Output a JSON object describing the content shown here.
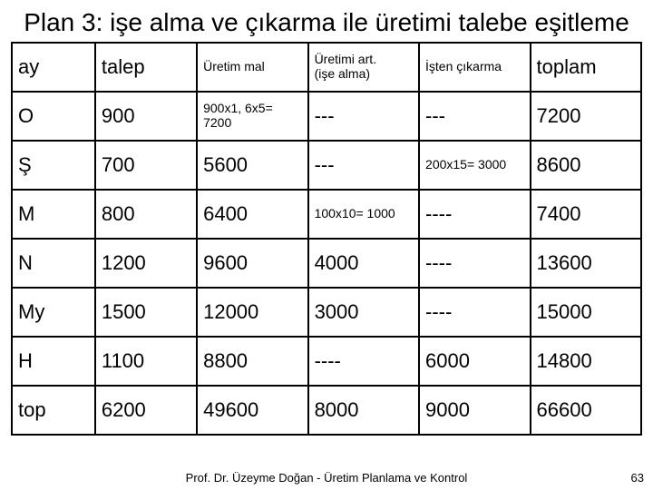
{
  "title": "Plan 3: işe alma ve çıkarma ile üretimi talebe eşitleme",
  "header": {
    "c0": "ay",
    "c1": "talep",
    "c2": "Üretim mal",
    "c3_line1": "Üretimi art.",
    "c3_line2": "(işe alma)",
    "c4": "İşten çıkarma",
    "c5": "toplam"
  },
  "rows": [
    {
      "c0": "O",
      "c1": "900",
      "c2": "900x1, 6x5= 7200",
      "c2_small": true,
      "c3": "---",
      "c4": "---",
      "c5": "7200"
    },
    {
      "c0": "Ş",
      "c1": "700",
      "c2": "5600",
      "c3": "---",
      "c4": "200x15= 3000",
      "c4_small": true,
      "c5": "8600"
    },
    {
      "c0": "M",
      "c1": "800",
      "c2": "6400",
      "c3": "100x10= 1000",
      "c3_small": true,
      "c4": "----",
      "c5": "7400"
    },
    {
      "c0": "N",
      "c1": "1200",
      "c2": "9600",
      "c3": "4000",
      "c4": "----",
      "c5": "13600"
    },
    {
      "c0": "My",
      "c1": "1500",
      "c2": "12000",
      "c3": "3000",
      "c4": "----",
      "c5": "15000"
    },
    {
      "c0": "H",
      "c1": "1100",
      "c2": "8800",
      "c3": "----",
      "c4": "6000",
      "c5": "14800"
    },
    {
      "c0": "top",
      "c1": "6200",
      "c2": "49600",
      "c3": "8000",
      "c4": "9000",
      "c5": "66600"
    }
  ],
  "footer": "Prof. Dr. Üzeyme Doğan - Üretim Planlama ve Kontrol",
  "pagenum": "63",
  "colors": {
    "background": "#ffffff",
    "text": "#000000",
    "border": "#000000"
  }
}
